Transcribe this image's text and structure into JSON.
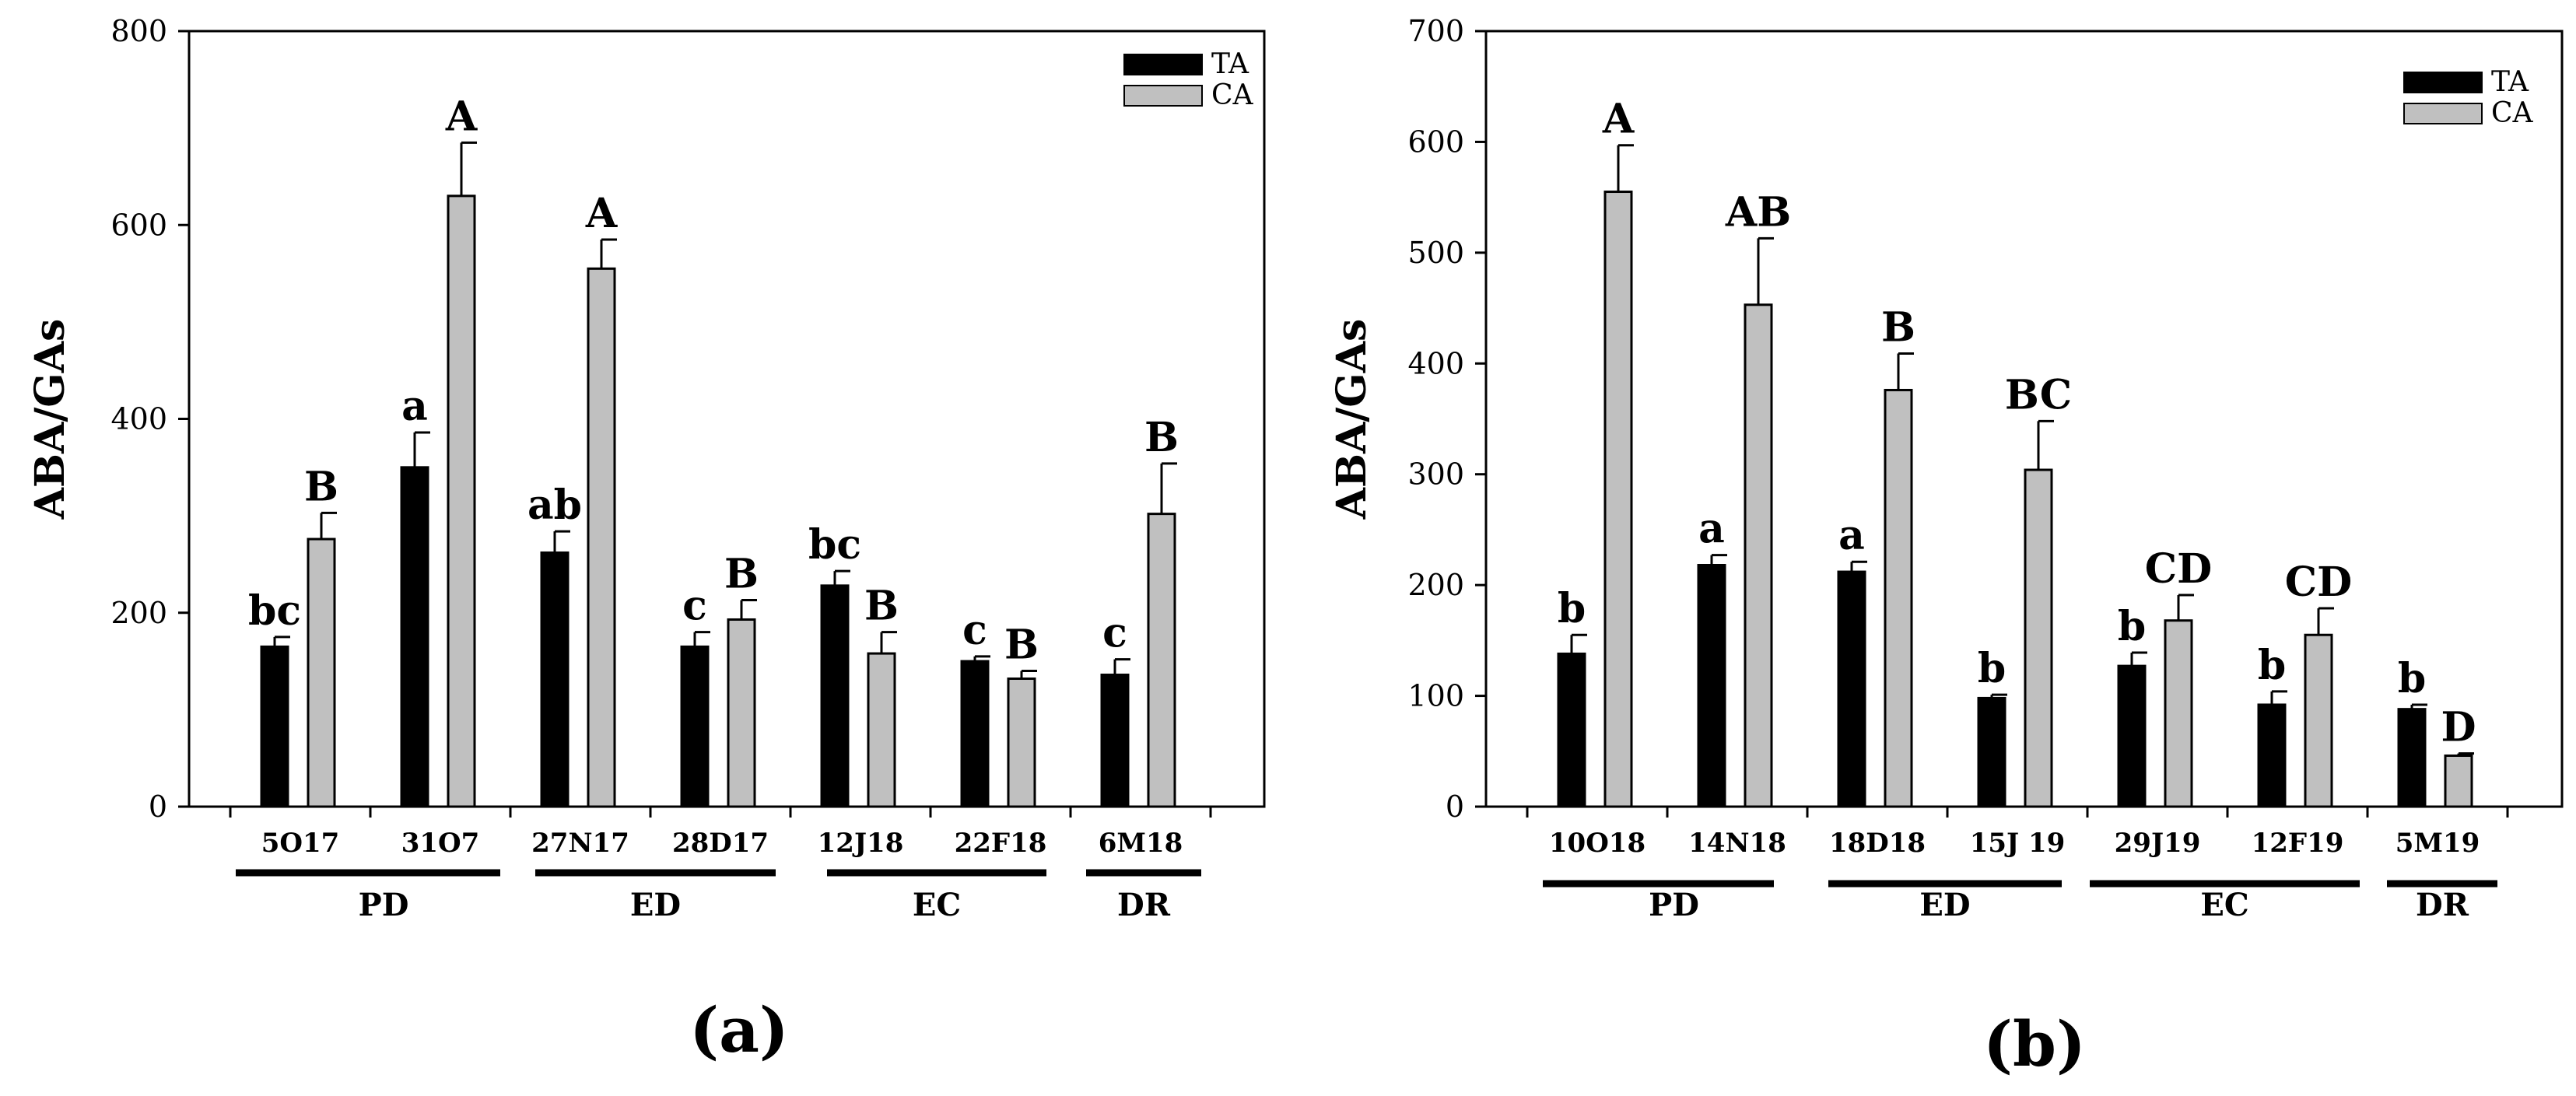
{
  "chart_data": [
    {
      "type": "bar",
      "panel_label": "(a)",
      "ylabel": "ABA/GAs",
      "xlabel": "",
      "ylim": [
        0,
        800
      ],
      "yticks": [
        "0",
        "200",
        "400",
        "600",
        "800"
      ],
      "categories": [
        "5O17",
        "31O7",
        "27N17",
        "28D17",
        "12J18",
        "22F18",
        "6M18"
      ],
      "series": [
        {
          "name": "TA",
          "color": "#000000",
          "values": [
            165,
            350,
            262,
            165,
            228,
            150,
            136
          ],
          "errors": [
            10,
            36,
            22,
            15,
            15,
            5,
            16
          ],
          "letters": [
            "bc",
            "a",
            "ab",
            "c",
            "bc",
            "c",
            "c"
          ]
        },
        {
          "name": "CA",
          "color": "#c0c0c0",
          "values": [
            276,
            630,
            555,
            193,
            158,
            132,
            302
          ],
          "errors": [
            27,
            55,
            30,
            20,
            22,
            8,
            52
          ],
          "letters": [
            "B",
            "A",
            "A",
            "B",
            "B",
            "B",
            "B"
          ]
        }
      ],
      "groups": [
        {
          "label": "PD",
          "start": 0,
          "end": 1
        },
        {
          "label": "ED",
          "start": 2,
          "end": 3
        },
        {
          "label": "EC",
          "start": 4,
          "end": 5
        },
        {
          "label": "DR",
          "start": 6,
          "end": 6
        }
      ],
      "legend_position": "top-right"
    },
    {
      "type": "bar",
      "panel_label": "(b)",
      "ylabel": "ABA/GAs",
      "xlabel": "",
      "ylim": [
        0,
        700
      ],
      "yticks": [
        "0",
        "100",
        "200",
        "300",
        "400",
        "500",
        "600",
        "700"
      ],
      "categories": [
        "10O18",
        "14N18",
        "18D18",
        "15J 19",
        "29J19",
        "12F19",
        "5M19"
      ],
      "series": [
        {
          "name": "TA",
          "color": "#000000",
          "values": [
            138,
            218,
            212,
            98,
            127,
            92,
            88
          ],
          "errors": [
            17,
            9,
            9,
            3,
            12,
            12,
            4
          ],
          "letters": [
            "b",
            "a",
            "a",
            "b",
            "b",
            "b",
            "b"
          ]
        },
        {
          "name": "CA",
          "color": "#c0c0c0",
          "values": [
            555,
            453,
            376,
            304,
            168,
            155,
            46
          ],
          "errors": [
            42,
            60,
            33,
            44,
            23,
            24,
            2
          ],
          "letters": [
            "A",
            "AB",
            "B",
            "BC",
            "CD",
            "CD",
            "D"
          ]
        }
      ],
      "groups": [
        {
          "label": "PD",
          "start": 0,
          "end": 1
        },
        {
          "label": "ED",
          "start": 2,
          "end": 3
        },
        {
          "label": "EC",
          "start": 4,
          "end": 5
        },
        {
          "label": "DR",
          "start": 6,
          "end": 6
        }
      ],
      "legend_position": "top-right"
    }
  ]
}
